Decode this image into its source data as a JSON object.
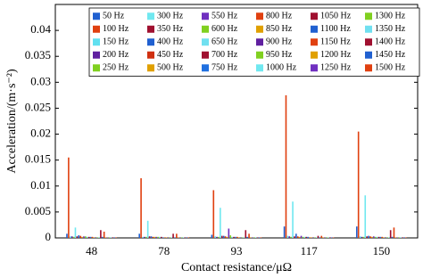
{
  "chart_data": {
    "type": "bar",
    "x_label": "Contact resistance/μΩ",
    "y_label": "Acceleration/(m·s⁻²)",
    "categories": [
      "48",
      "78",
      "93",
      "117",
      "150"
    ],
    "ylim": [
      0,
      0.045
    ],
    "yticks": [
      0,
      0.005,
      0.01,
      0.015,
      0.02,
      0.025,
      0.03,
      0.035,
      0.04
    ],
    "series": [
      {
        "name": "50 Hz",
        "color": "#2060d0",
        "values": [
          0.0008,
          0.0008,
          0.0006,
          0.0022,
          0.0022
        ]
      },
      {
        "name": "100 Hz",
        "color": "#e04010",
        "values": [
          0.0155,
          0.0115,
          0.0092,
          0.0275,
          0.0205
        ]
      },
      {
        "name": "150 Hz",
        "color": "#60e0f0",
        "values": [
          0.0003,
          0.0002,
          0.0003,
          0.0004,
          0.0003
        ]
      },
      {
        "name": "200 Hz",
        "color": "#6020a0",
        "values": [
          0.0003,
          0.0002,
          0.0002,
          0.0003,
          0.0002
        ]
      },
      {
        "name": "250 Hz",
        "color": "#80d020",
        "values": [
          0.0002,
          0.0002,
          0.0002,
          0.0002,
          0.0002
        ]
      },
      {
        "name": "300 Hz",
        "color": "#70e8f0",
        "values": [
          0.002,
          0.0033,
          0.0058,
          0.007,
          0.0082
        ]
      },
      {
        "name": "350 Hz",
        "color": "#a01030",
        "values": [
          0.0003,
          0.0003,
          0.0004,
          0.0003,
          0.0003
        ]
      },
      {
        "name": "400 Hz",
        "color": "#2060d0",
        "values": [
          0.0005,
          0.0003,
          0.0004,
          0.0008,
          0.0004
        ]
      },
      {
        "name": "450 Hz",
        "color": "#d03010",
        "values": [
          0.0004,
          0.0002,
          0.0003,
          0.0003,
          0.0003
        ]
      },
      {
        "name": "500 Hz",
        "color": "#e0a000",
        "values": [
          0.0002,
          0.0002,
          0.0002,
          0.0002,
          0.0002
        ]
      },
      {
        "name": "550 Hz",
        "color": "#7030c0",
        "values": [
          0.0003,
          0.0002,
          0.0018,
          0.0004,
          0.0003
        ]
      },
      {
        "name": "600 Hz",
        "color": "#80d020",
        "values": [
          0.0003,
          0.0002,
          0.0005,
          0.0002,
          0.0002
        ]
      },
      {
        "name": "650 Hz",
        "color": "#70e0f0",
        "values": [
          0.0002,
          0.0002,
          0.0002,
          0.0002,
          0.0002
        ]
      },
      {
        "name": "700 Hz",
        "color": "#a01030",
        "values": [
          0.0002,
          0.0002,
          0.0002,
          0.0002,
          0.0002
        ]
      },
      {
        "name": "750 Hz",
        "color": "#2070e0",
        "values": [
          0.0002,
          0.0001,
          0.0002,
          0.0002,
          0.0002
        ]
      },
      {
        "name": "800 Hz",
        "color": "#e04010",
        "values": [
          0.0002,
          0.0001,
          0.0002,
          0.0001,
          0.0002
        ]
      },
      {
        "name": "850 Hz",
        "color": "#e0a000",
        "values": [
          0.0001,
          0.0001,
          0.0001,
          0.0001,
          0.0001
        ]
      },
      {
        "name": "900 Hz",
        "color": "#6020a0",
        "values": [
          0.0001,
          0.0001,
          0.0001,
          0.0001,
          0.0001
        ]
      },
      {
        "name": "950 Hz",
        "color": "#80d020",
        "values": [
          0.0001,
          0.0001,
          0.0001,
          0.0001,
          0.0001
        ]
      },
      {
        "name": "1000 Hz",
        "color": "#70e8f0",
        "values": [
          0.0001,
          0.0001,
          0.0001,
          0.0001,
          0.0001
        ]
      },
      {
        "name": "1050 Hz",
        "color": "#a01030",
        "values": [
          0.0015,
          0.0008,
          0.0015,
          0.0004,
          0.0015
        ]
      },
      {
        "name": "1100 Hz",
        "color": "#2060d0",
        "values": [
          0.0002,
          0.0001,
          0.0002,
          0.0001,
          0.0002
        ]
      },
      {
        "name": "1150 Hz",
        "color": "#e04010",
        "values": [
          0.0012,
          0.0008,
          0.0008,
          0.0004,
          0.002
        ]
      },
      {
        "name": "1200 Hz",
        "color": "#e0a000",
        "values": [
          0.0001,
          0.0001,
          0.0001,
          0.0001,
          0.0001
        ]
      },
      {
        "name": "1250 Hz",
        "color": "#7030c0",
        "values": [
          0.0001,
          0.0001,
          0.0001,
          0.0001,
          0.0001
        ]
      },
      {
        "name": "1300 Hz",
        "color": "#80d020",
        "values": [
          0.0001,
          0.0001,
          0.0001,
          0.0001,
          0.0001
        ]
      },
      {
        "name": "1350 Hz",
        "color": "#70e0f0",
        "values": [
          0.0001,
          0.0001,
          0.0001,
          0.0001,
          0.0001
        ]
      },
      {
        "name": "1400 Hz",
        "color": "#a01030",
        "values": [
          0.0001,
          0.0001,
          0.0001,
          0.0001,
          0.0001
        ]
      },
      {
        "name": "1450 Hz",
        "color": "#2060d0",
        "values": [
          0.0001,
          0.0001,
          0.0001,
          0.0001,
          0.0001
        ]
      },
      {
        "name": "1500 Hz",
        "color": "#e04010",
        "values": [
          0.0001,
          0.0001,
          0.0001,
          0.0001,
          0.0001
        ]
      }
    ]
  }
}
